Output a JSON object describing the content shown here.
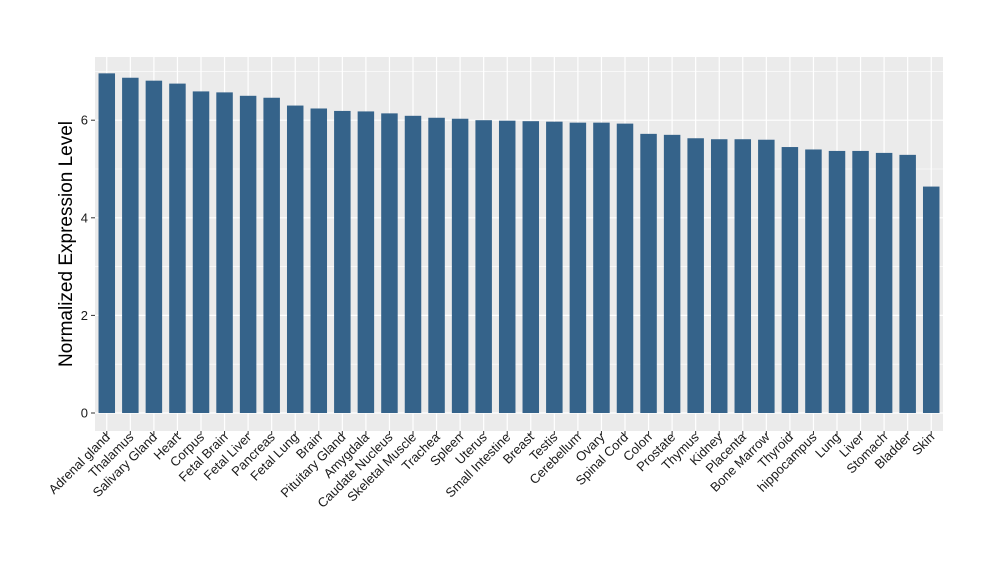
{
  "chart_data": {
    "type": "bar",
    "title": "",
    "xlabel": "",
    "ylabel": "Normalized Expression Level",
    "ylim": [
      0,
      7.1
    ],
    "yticks": [
      0,
      2,
      4,
      6
    ],
    "grid": true,
    "legend": "none",
    "colors": {
      "bar": "#35638a",
      "panel": "#ebebeb",
      "grid": "#ffffff"
    },
    "categories": [
      "Adrenal gland",
      "Thalamus",
      "Salivary Gland",
      "Heart",
      "Corpus",
      "Fetal Brain",
      "Fetal Liver",
      "Pancreas",
      "Fetal Lung",
      "Brain",
      "Pituitary Gland",
      "Amygdala",
      "Caudate Nucleus",
      "Skeletal Muscle",
      "Trachea",
      "Spleen",
      "Uterus",
      "Small Intestine",
      "Breast",
      "Testis",
      "Cerebellum",
      "Ovary",
      "Spinal Cord",
      "Colon",
      "Prostate",
      "Thymus",
      "Kidney",
      "Placenta",
      "Bone Marrow",
      "Thyroid",
      "hippocampus",
      "Lung",
      "Liver",
      "Stomach",
      "Bladder",
      "Skin"
    ],
    "values": [
      6.96,
      6.87,
      6.81,
      6.75,
      6.59,
      6.57,
      6.5,
      6.46,
      6.3,
      6.24,
      6.19,
      6.18,
      6.14,
      6.09,
      6.05,
      6.03,
      6.0,
      5.99,
      5.98,
      5.97,
      5.95,
      5.95,
      5.93,
      5.72,
      5.7,
      5.63,
      5.61,
      5.61,
      5.6,
      5.45,
      5.4,
      5.37,
      5.37,
      5.33,
      5.29,
      4.64
    ]
  }
}
